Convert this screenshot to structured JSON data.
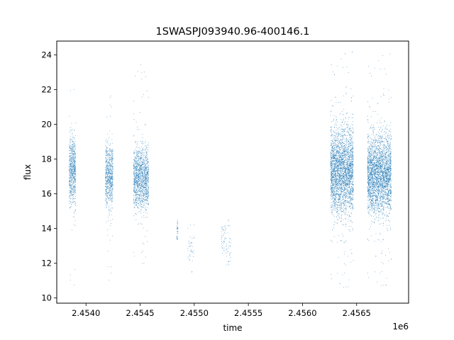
{
  "chart_data": {
    "type": "scatter",
    "title": "1SWASPJ093940.96-400146.1",
    "xlabel": "time",
    "ylabel": "flux",
    "x_offset_label": "1e6",
    "xlim": [
      2453730,
      2456980
    ],
    "ylim": [
      9.7,
      24.8
    ],
    "x_ticks": [
      {
        "value": 2454000,
        "label": "2.4540"
      },
      {
        "value": 2454500,
        "label": "2.4545"
      },
      {
        "value": 2455000,
        "label": "2.4550"
      },
      {
        "value": 2455500,
        "label": "2.4555"
      },
      {
        "value": 2456000,
        "label": "2.4560"
      },
      {
        "value": 2456500,
        "label": "2.4565"
      }
    ],
    "y_ticks": [
      {
        "value": 10,
        "label": "10"
      },
      {
        "value": 12,
        "label": "12"
      },
      {
        "value": 14,
        "label": "14"
      },
      {
        "value": 16,
        "label": "16"
      },
      {
        "value": 18,
        "label": "18"
      },
      {
        "value": 20,
        "label": "20"
      },
      {
        "value": 22,
        "label": "22"
      },
      {
        "value": 24,
        "label": "24"
      }
    ],
    "grid": false,
    "legend": "none",
    "marker_color": "#1f77b4",
    "observing_seasons": [
      {
        "x_start": 2453845,
        "x_end": 2453905,
        "flux_mean": 17.3,
        "flux_sd": 1.0,
        "flux_min": 10.6,
        "flux_max": 22.3,
        "density": "medium"
      },
      {
        "x_start": 2454180,
        "x_end": 2454250,
        "flux_mean": 17.0,
        "flux_sd": 0.9,
        "flux_min": 11.0,
        "flux_max": 22.1,
        "density": "medium"
      },
      {
        "x_start": 2454440,
        "x_end": 2454580,
        "flux_mean": 16.9,
        "flux_sd": 0.85,
        "flux_min": 11.8,
        "flux_max": 23.8,
        "density": "high"
      },
      {
        "x_start": 2454840,
        "x_end": 2454850,
        "flux_mean": 13.9,
        "flux_sd": 0.4,
        "flux_min": 13.4,
        "flux_max": 14.5,
        "density": "sparse"
      },
      {
        "x_start": 2454940,
        "x_end": 2455000,
        "flux_mean": 12.8,
        "flux_sd": 0.8,
        "flux_min": 10.8,
        "flux_max": 14.2,
        "density": "sparse"
      },
      {
        "x_start": 2455250,
        "x_end": 2455290,
        "flux_mean": 13.6,
        "flux_sd": 0.6,
        "flux_min": 12.4,
        "flux_max": 14.6,
        "density": "sparse"
      },
      {
        "x_start": 2455290,
        "x_end": 2455340,
        "flux_mean": 13.1,
        "flux_sd": 0.7,
        "flux_min": 11.9,
        "flux_max": 14.5,
        "density": "sparse"
      },
      {
        "x_start": 2456260,
        "x_end": 2456470,
        "flux_mean": 17.3,
        "flux_sd": 1.2,
        "flux_min": 10.4,
        "flux_max": 24.2,
        "density": "very-high"
      },
      {
        "x_start": 2456600,
        "x_end": 2456820,
        "flux_mean": 17.1,
        "flux_sd": 1.1,
        "flux_min": 10.5,
        "flux_max": 24.1,
        "density": "very-high"
      }
    ]
  }
}
